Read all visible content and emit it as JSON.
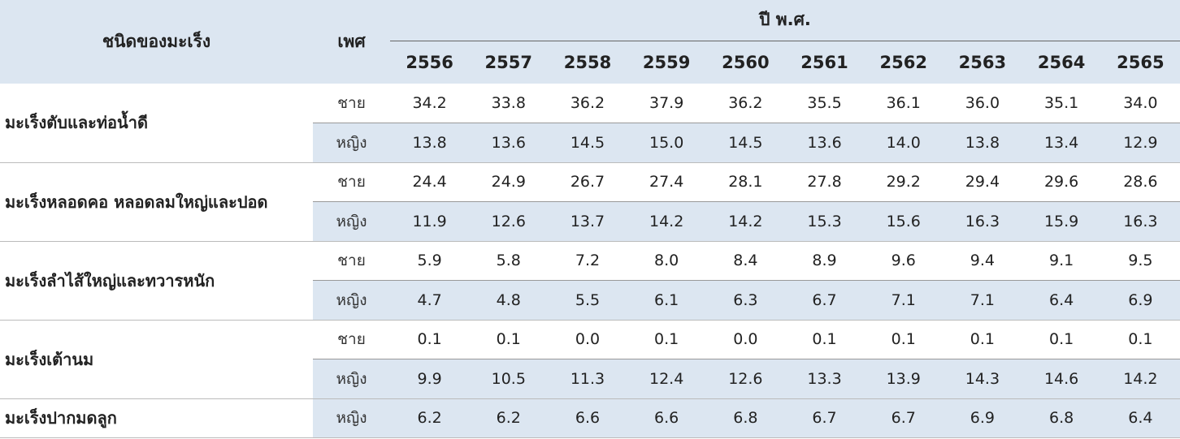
{
  "header": {
    "type_label": "ชนิดของมะเร็ง",
    "sex_label": "เพศ",
    "year_label": "ปี พ.ศ.",
    "years": [
      2556,
      2557,
      2558,
      2559,
      2560,
      2561,
      2562,
      2563,
      2564,
      2565
    ]
  },
  "groups": [
    {
      "name": "มะเร็งตับและท่อน้ำดี",
      "rows": [
        {
          "sex": "ชาย",
          "values": [
            "34.2",
            "33.8",
            "36.2",
            "37.9",
            "36.2",
            "35.5",
            "36.1",
            "36.0",
            "35.1",
            "34.0"
          ]
        },
        {
          "sex": "หญิง",
          "values": [
            "13.8",
            "13.6",
            "14.5",
            "15.0",
            "14.5",
            "13.6",
            "14.0",
            "13.8",
            "13.4",
            "12.9"
          ]
        }
      ]
    },
    {
      "name": "มะเร็งหลอดคอ หลอดลมใหญ่และปอด",
      "rows": [
        {
          "sex": "ชาย",
          "values": [
            "24.4",
            "24.9",
            "26.7",
            "27.4",
            "28.1",
            "27.8",
            "29.2",
            "29.4",
            "29.6",
            "28.6"
          ]
        },
        {
          "sex": "หญิง",
          "values": [
            "11.9",
            "12.6",
            "13.7",
            "14.2",
            "14.2",
            "15.3",
            "15.6",
            "16.3",
            "15.9",
            "16.3"
          ]
        }
      ]
    },
    {
      "name": "มะเร็งลำไส้ใหญ่และทวารหนัก",
      "rows": [
        {
          "sex": "ชาย",
          "values": [
            "5.9",
            "5.8",
            "7.2",
            "8.0",
            "8.4",
            "8.9",
            "9.6",
            "9.4",
            "9.1",
            "9.5"
          ]
        },
        {
          "sex": "หญิง",
          "values": [
            "4.7",
            "4.8",
            "5.5",
            "6.1",
            "6.3",
            "6.7",
            "7.1",
            "7.1",
            "6.4",
            "6.9"
          ]
        }
      ]
    },
    {
      "name": "มะเร็งเต้านม",
      "rows": [
        {
          "sex": "ชาย",
          "values": [
            "0.1",
            "0.1",
            "0.0",
            "0.1",
            "0.0",
            "0.1",
            "0.1",
            "0.1",
            "0.1",
            "0.1"
          ]
        },
        {
          "sex": "หญิง",
          "values": [
            "9.9",
            "10.5",
            "11.3",
            "12.4",
            "12.6",
            "13.3",
            "13.9",
            "14.3",
            "14.6",
            "14.2"
          ]
        }
      ]
    },
    {
      "name": "มะเร็งปากมดลูก",
      "rows": [
        {
          "sex": "หญิง",
          "values": [
            "6.2",
            "6.2",
            "6.6",
            "6.6",
            "6.8",
            "6.7",
            "6.7",
            "6.9",
            "6.8",
            "6.4"
          ]
        }
      ]
    }
  ]
}
